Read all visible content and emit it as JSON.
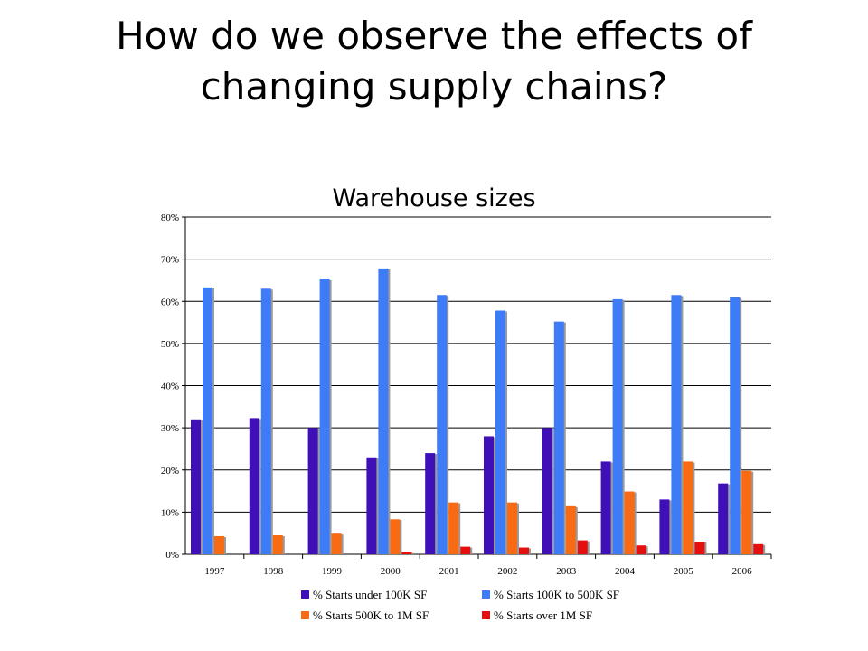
{
  "slide": {
    "title_line1": "How do we observe the effects of",
    "title_line2": "changing supply chains?"
  },
  "chart_data": {
    "type": "bar",
    "title": "Warehouse sizes",
    "categories": [
      "1997",
      "1998",
      "1999",
      "2000",
      "2001",
      "2002",
      "2003",
      "2004",
      "2005",
      "2006"
    ],
    "series": [
      {
        "name": "% Starts under 100K SF",
        "color": "#3f0fb7",
        "values": [
          32,
          32.3,
          30,
          23,
          24,
          28,
          30,
          22,
          13,
          16.8
        ]
      },
      {
        "name": "% Starts 100K to 500K SF",
        "color": "#3e7bf7",
        "values": [
          63.3,
          63,
          65.2,
          67.8,
          61.5,
          57.8,
          55.2,
          60.5,
          61.5,
          61
        ]
      },
      {
        "name": "% Starts 500K to 1M SF",
        "color": "#f86a13",
        "values": [
          4.3,
          4.5,
          4.9,
          8.3,
          12.3,
          12.3,
          11.4,
          14.9,
          22,
          19.8
        ]
      },
      {
        "name": "% Starts over 1M SF",
        "color": "#e3100f",
        "values": [
          0,
          0,
          0,
          0.5,
          1.8,
          1.6,
          3.3,
          2.1,
          3,
          2.4
        ]
      }
    ],
    "ylim": [
      0,
      80
    ],
    "yticks": [
      "0%",
      "10%",
      "20%",
      "30%",
      "40%",
      "50%",
      "60%",
      "70%",
      "80%"
    ],
    "grid": true,
    "legend_position": "bottom"
  }
}
